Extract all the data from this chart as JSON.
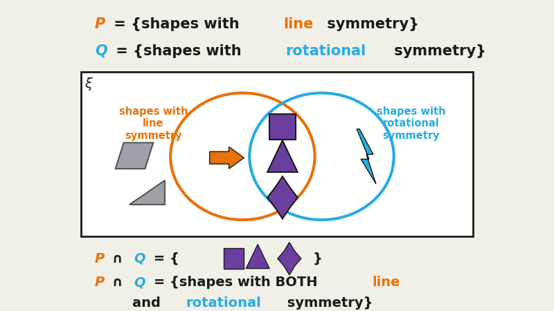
{
  "bg_color": "#f0efe8",
  "orange": "#e8720c",
  "blue": "#29abe2",
  "purple": "#6b3fa0",
  "dark": "#1a1a1a",
  "gray_fill": "#a0a0a8",
  "xi": "ξ",
  "label_left": "shapes with\nline\nsymmetry",
  "label_right": "shapes with\nrotational\nsymmetry"
}
